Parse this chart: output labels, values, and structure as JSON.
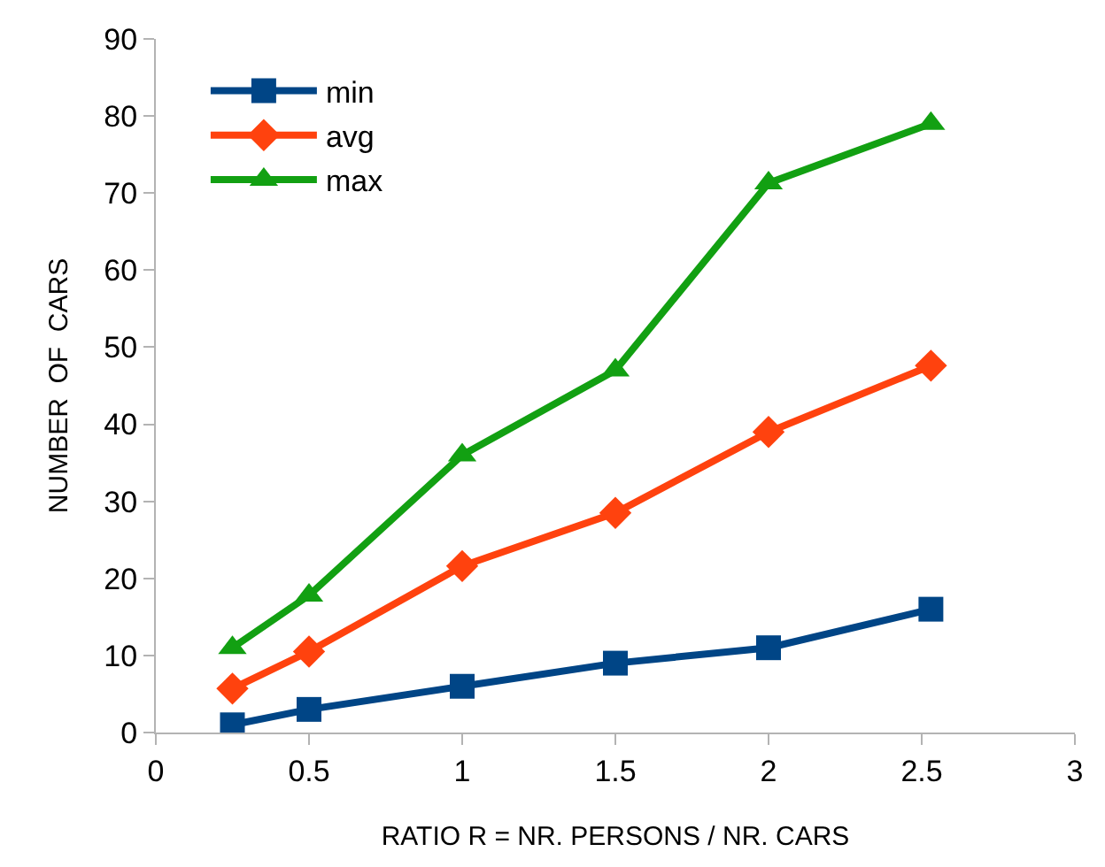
{
  "chart_data": {
    "type": "line",
    "xlabel": "RATIO R = NR. PERSONS / NR. CARS",
    "ylabel": "NUMBER  OF  CARS",
    "x": [
      0.25,
      0.5,
      1,
      1.5,
      2,
      2.53
    ],
    "series": [
      {
        "name": "min",
        "color": "#004586",
        "marker": "square",
        "values": [
          1,
          3,
          6,
          9,
          11,
          16
        ]
      },
      {
        "name": "avg",
        "color": "#ff420e",
        "marker": "diamond",
        "values": [
          5.7,
          10.5,
          21.6,
          28.5,
          39,
          47.6
        ]
      },
      {
        "name": "max",
        "color": "#12a012",
        "marker": "triangle",
        "values": [
          11,
          17.8,
          36,
          47,
          71.3,
          79
        ]
      }
    ],
    "xlim": [
      0,
      3
    ],
    "xticks": [
      0,
      0.5,
      1,
      1.5,
      2,
      2.5,
      3
    ],
    "ylim": [
      0,
      90
    ],
    "yticks": [
      0,
      10,
      20,
      30,
      40,
      50,
      60,
      70,
      80,
      90
    ],
    "grid": false,
    "legend": "top left",
    "line_style": "solid"
  }
}
